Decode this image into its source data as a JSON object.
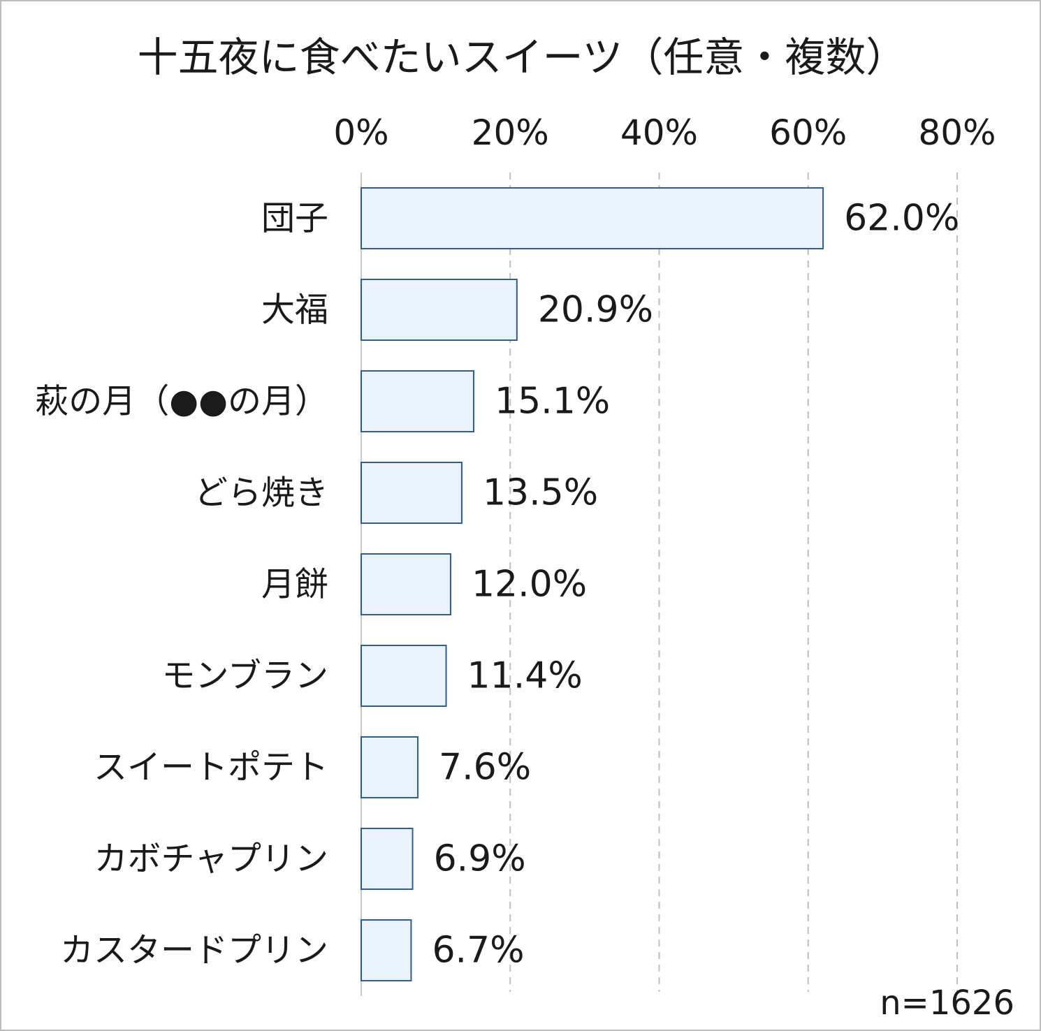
{
  "chart_data": {
    "type": "bar",
    "orientation": "horizontal",
    "title": "十五夜に食べたいスイーツ（任意・複数）",
    "note": "n=1626",
    "xlim": [
      0,
      80
    ],
    "x_ticks": [
      0,
      20,
      40,
      60,
      80
    ],
    "x_tick_labels": [
      "0%",
      "20%",
      "40%",
      "60%",
      "80%"
    ],
    "x_axis_position": "top",
    "grid": "vertical-dashed",
    "categories": [
      "団子",
      "大福",
      "萩の月（●●の月）",
      "どら焼き",
      "月餅",
      "モンブラン",
      "スイートポテト",
      "カボチャプリン",
      "カスタードプリン"
    ],
    "values": [
      62.0,
      20.9,
      15.1,
      13.5,
      12.0,
      11.4,
      7.6,
      6.9,
      6.7
    ],
    "value_labels": [
      "62.0%",
      "20.9%",
      "15.1%",
      "13.5%",
      "12.0%",
      "11.4%",
      "7.6%",
      "6.9%",
      "6.7%"
    ],
    "bar_fill": "#eaf2fb",
    "bar_stroke": "#2e5d8f"
  }
}
